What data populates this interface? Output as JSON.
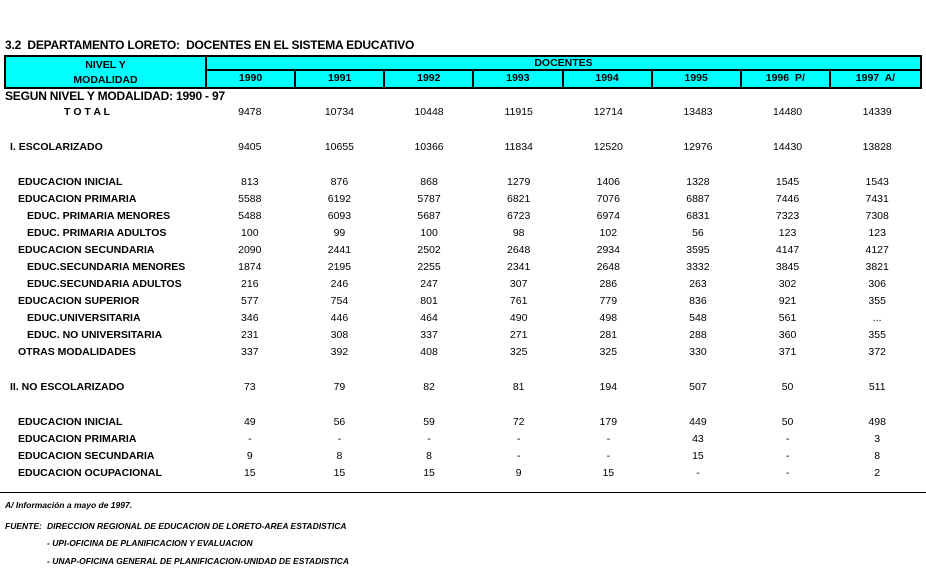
{
  "title": {
    "line1": "3.2  DEPARTAMENTO LORETO:  DOCENTES EN EL SISTEMA EDUCATIVO",
    "line2": "SEGUN NIVEL Y MODALIDAD: 1990 - 97"
  },
  "colors": {
    "header_bg": "#00ffff",
    "border": "#000000",
    "text": "#000000"
  },
  "table": {
    "header": {
      "col1_line1": "NIVEL Y",
      "col1_line2": "MODALIDAD",
      "group_label": "DOCENTES",
      "years": [
        "1990",
        "1991",
        "1992",
        "1993",
        "1994",
        "1995",
        "1996  P/",
        "1997  A/"
      ]
    },
    "rows": [
      {
        "label": "T O T A L",
        "style": "total",
        "values": [
          "9478",
          "10734",
          "10448",
          "11915",
          "12714",
          "13483",
          "14480",
          "14339"
        ]
      },
      {
        "spacer": true
      },
      {
        "label": "I. ESCOLARIZADO",
        "style": "section",
        "values": [
          "9405",
          "10655",
          "10366",
          "11834",
          "12520",
          "12976",
          "14430",
          "13828"
        ]
      },
      {
        "spacer": true
      },
      {
        "label": "EDUCACION INICIAL",
        "style": "level1",
        "values": [
          "813",
          "876",
          "868",
          "1279",
          "1406",
          "1328",
          "1545",
          "1543"
        ]
      },
      {
        "label": "EDUCACION PRIMARIA",
        "style": "level1",
        "values": [
          "5588",
          "6192",
          "5787",
          "6821",
          "7076",
          "6887",
          "7446",
          "7431"
        ]
      },
      {
        "label": "EDUC. PRIMARIA MENORES",
        "style": "level2",
        "values": [
          "5488",
          "6093",
          "5687",
          "6723",
          "6974",
          "6831",
          "7323",
          "7308"
        ]
      },
      {
        "label": "EDUC. PRIMARIA ADULTOS",
        "style": "level2",
        "values": [
          "100",
          "99",
          "100",
          "98",
          "102",
          "56",
          "123",
          "123"
        ]
      },
      {
        "label": "EDUCACION SECUNDARIA",
        "style": "level1",
        "values": [
          "2090",
          "2441",
          "2502",
          "2648",
          "2934",
          "3595",
          "4147",
          "4127"
        ]
      },
      {
        "label": "EDUC.SECUNDARIA MENORES",
        "style": "level2",
        "values": [
          "1874",
          "2195",
          "2255",
          "2341",
          "2648",
          "3332",
          "3845",
          "3821"
        ]
      },
      {
        "label": "EDUC.SECUNDARIA ADULTOS",
        "style": "level2",
        "values": [
          "216",
          "246",
          "247",
          "307",
          "286",
          "263",
          "302",
          "306"
        ]
      },
      {
        "label": "EDUCACION SUPERIOR",
        "style": "level1",
        "values": [
          "577",
          "754",
          "801",
          "761",
          "779",
          "836",
          "921",
          "355"
        ]
      },
      {
        "label": "EDUC.UNIVERSITARIA",
        "style": "level2",
        "values": [
          "346",
          "446",
          "464",
          "490",
          "498",
          "548",
          "561",
          "..."
        ]
      },
      {
        "label": "EDUC. NO UNIVERSITARIA",
        "style": "level2",
        "values": [
          "231",
          "308",
          "337",
          "271",
          "281",
          "288",
          "360",
          "355"
        ]
      },
      {
        "label": "OTRAS MODALIDADES",
        "style": "level1",
        "values": [
          "337",
          "392",
          "408",
          "325",
          "325",
          "330",
          "371",
          "372"
        ]
      },
      {
        "spacer": true
      },
      {
        "label": "II. NO ESCOLARIZADO",
        "style": "section",
        "values": [
          "73",
          "79",
          "82",
          "81",
          "194",
          "507",
          "50",
          "511"
        ]
      },
      {
        "spacer": true
      },
      {
        "label": "EDUCACION INICIAL",
        "style": "level1",
        "values": [
          "49",
          "56",
          "59",
          "72",
          "179",
          "449",
          "50",
          "498"
        ]
      },
      {
        "label": "EDUCACION PRIMARIA",
        "style": "level1",
        "values": [
          "-",
          "-",
          "-",
          "-",
          "-",
          "43",
          "-",
          "3"
        ]
      },
      {
        "label": "EDUCACION SECUNDARIA",
        "style": "level1",
        "values": [
          "9",
          "8",
          "8",
          "-",
          "-",
          "15",
          "-",
          "8"
        ]
      },
      {
        "label": "EDUCACION OCUPACIONAL",
        "style": "level1",
        "values": [
          "15",
          "15",
          "15",
          "9",
          "15",
          "-",
          "-",
          "2"
        ]
      }
    ]
  },
  "footer": {
    "note": "A/ Información  a mayo de 1997.",
    "source_label": "FUENTE:",
    "source_line1": "DIRECCION REGIONAL DE EDUCACION DE LORETO-AREA ESTADISTICA",
    "source_line2": "- UPI-OFICINA DE PLANIFICACION Y EVALUACION",
    "source_line3": "- UNAP-OFICINA GENERAL DE PLANIFICACION-UNIDAD DE ESTADISTICA"
  }
}
